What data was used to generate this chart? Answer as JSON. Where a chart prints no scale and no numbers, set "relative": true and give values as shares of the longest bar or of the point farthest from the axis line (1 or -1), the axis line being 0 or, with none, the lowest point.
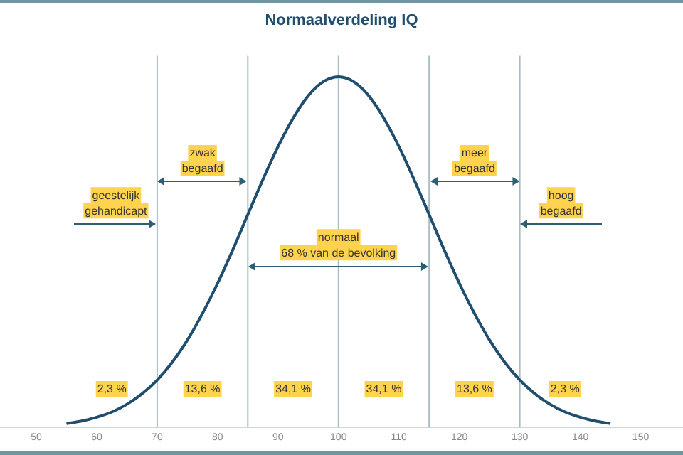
{
  "chart_data": {
    "type": "line",
    "title": "Normaalverdeling IQ",
    "relative": true,
    "color": "#1f4e6e",
    "marker": "none",
    "grid": false,
    "legend": false,
    "x": [
      55,
      57.5,
      60,
      62.5,
      65,
      67.5,
      70,
      72.5,
      75,
      77.5,
      80,
      82.5,
      85,
      87.5,
      90,
      92.5,
      95,
      97.5,
      100,
      102.5,
      105,
      107.5,
      110,
      112.5,
      115,
      117.5,
      120,
      122.5,
      125,
      127.5,
      130,
      132.5,
      135,
      137.5,
      140,
      142.5,
      145
    ],
    "values": [
      0.011,
      0.018,
      0.029,
      0.044,
      0.066,
      0.096,
      0.135,
      0.186,
      0.249,
      0.325,
      0.411,
      0.506,
      0.607,
      0.707,
      0.801,
      0.882,
      0.946,
      0.986,
      1,
      0.986,
      0.946,
      0.882,
      0.801,
      0.707,
      0.607,
      0.506,
      0.411,
      0.325,
      0.249,
      0.186,
      0.135,
      0.096,
      0.066,
      0.044,
      0.029,
      0.018,
      0.011
    ],
    "xlim": [
      44,
      157
    ],
    "xticks": [
      50,
      60,
      70,
      80,
      90,
      100,
      110,
      120,
      130,
      140,
      150
    ],
    "ref_lines": [
      {
        "axis": "x",
        "value": 70,
        "color": "#a9bcc4"
      },
      {
        "axis": "x",
        "value": 85,
        "color": "#a9bcc4"
      },
      {
        "axis": "x",
        "value": 100,
        "color": "#a9bcc4"
      },
      {
        "axis": "x",
        "value": 115,
        "color": "#a9bcc4"
      },
      {
        "axis": "x",
        "value": 130,
        "color": "#a9bcc4"
      }
    ],
    "annotations": [
      "geestelijk\ngehandicapt",
      "zwak\nbegaafd",
      "normaal\n68 % van de bevolking",
      "meer\nbegaafd",
      "hoog\nbegaafd",
      {
        "text": "2,3 %",
        "x": 62.5,
        "y": 0.11
      },
      {
        "text": "13,6 %",
        "x": 77.5,
        "y": 0.11
      },
      {
        "text": "34,1 %",
        "x": 92.5,
        "y": 0.11
      },
      {
        "text": "34,1 %",
        "x": 107.5,
        "y": 0.11
      },
      {
        "text": "13,6 %",
        "x": 122.5,
        "y": 0.11
      },
      {
        "text": "2,3 %",
        "x": 137.5,
        "y": 0.11
      }
    ]
  }
}
